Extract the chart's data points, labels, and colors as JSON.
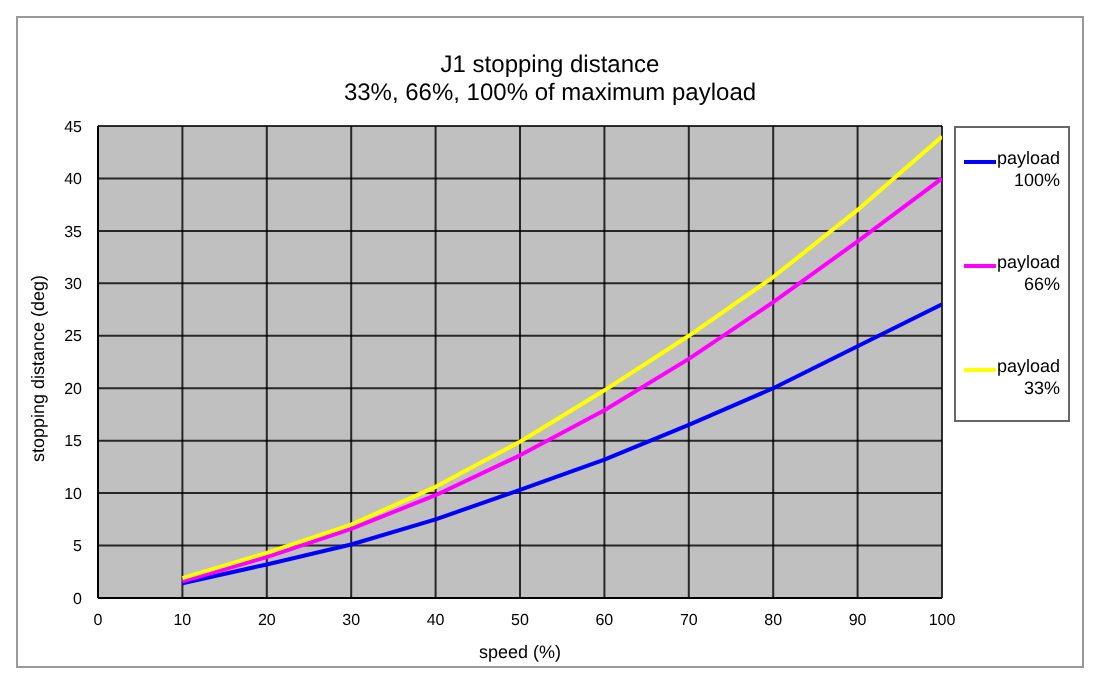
{
  "chart_data": {
    "type": "line",
    "title": "J1 stopping distance",
    "subtitle": "33%, 66%, 100% of maximum payload",
    "xlabel": "speed (%)",
    "ylabel": "stopping distance (deg)",
    "x": [
      10,
      20,
      30,
      40,
      50,
      60,
      70,
      80,
      90,
      100
    ],
    "series": [
      {
        "name": "payload 100%",
        "color": "#0000ff",
        "values": [
          1.4,
          3.2,
          5.1,
          7.5,
          10.3,
          13.2,
          16.5,
          20,
          24,
          28
        ]
      },
      {
        "name": "payload 66%",
        "color": "#ff00ff",
        "values": [
          1.6,
          3.9,
          6.6,
          9.8,
          13.6,
          17.9,
          22.8,
          28.2,
          34,
          40
        ]
      },
      {
        "name": "payload 33%",
        "color": "#ffff00",
        "values": [
          1.9,
          4.3,
          7.0,
          10.6,
          14.9,
          19.8,
          25,
          30.6,
          37,
          44
        ]
      }
    ],
    "xlim": [
      0,
      100
    ],
    "xticks": [
      0,
      10,
      20,
      30,
      40,
      50,
      60,
      70,
      80,
      90,
      100
    ],
    "ylim": [
      0,
      45
    ],
    "yticks": [
      0,
      5,
      10,
      15,
      20,
      25,
      30,
      35,
      40,
      45
    ],
    "grid": true,
    "legend": "right",
    "marker": "none",
    "line_style": "solid"
  }
}
